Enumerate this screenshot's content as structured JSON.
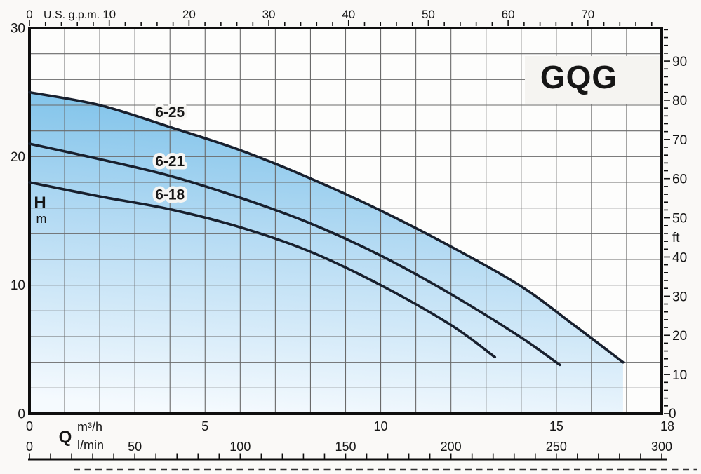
{
  "chart_data": {
    "type": "line",
    "title": "GQG",
    "x_axis_top_gpm": {
      "label": "U.S. g.p.m.",
      "ticks": [
        0,
        10,
        20,
        30,
        40,
        50,
        60,
        70
      ],
      "minor_step": 2,
      "minor_max": 78
    },
    "x_axis_bottom_m3h": {
      "symbol": "Q",
      "unit": "m³/h",
      "ticks": [
        0,
        5,
        10,
        15,
        18
      ],
      "max": 18
    },
    "x_axis_bottom_lmin": {
      "unit": "l/min",
      "ticks": [
        0,
        50,
        100,
        150,
        200,
        250,
        300
      ],
      "minor_step": 10,
      "max": 300
    },
    "y_axis_left_m": {
      "symbol": "H",
      "unit": "m",
      "ticks": [
        0,
        10,
        20,
        30
      ],
      "max": 30
    },
    "y_axis_right_ft": {
      "unit": "ft",
      "ticks": [
        0,
        10,
        20,
        30,
        40,
        50,
        60,
        70,
        80,
        90
      ],
      "minor_step": 2,
      "minor_max": 98
    },
    "series": [
      {
        "name": "6-25",
        "points": [
          [
            0,
            25
          ],
          [
            2,
            24
          ],
          [
            4,
            22.3
          ],
          [
            6,
            20.5
          ],
          [
            8,
            18.3
          ],
          [
            10,
            15.8
          ],
          [
            12,
            13.0
          ],
          [
            14,
            9.9
          ],
          [
            15.5,
            6.9
          ],
          [
            16.9,
            4.0
          ]
        ]
      },
      {
        "name": "6-21",
        "points": [
          [
            0,
            21
          ],
          [
            2,
            19.8
          ],
          [
            4,
            18.5
          ],
          [
            6,
            16.8
          ],
          [
            8,
            14.8
          ],
          [
            10,
            12.3
          ],
          [
            12,
            9.3
          ],
          [
            13.9,
            6.1
          ],
          [
            15.1,
            3.8
          ]
        ]
      },
      {
        "name": "6-18",
        "points": [
          [
            0,
            18
          ],
          [
            2,
            16.9
          ],
          [
            4,
            15.9
          ],
          [
            6,
            14.5
          ],
          [
            8,
            12.6
          ],
          [
            10,
            10.0
          ],
          [
            12,
            6.9
          ],
          [
            13.25,
            4.4
          ]
        ]
      }
    ],
    "colors": {
      "curve": "#18202e",
      "fill_top": "#77bfe8",
      "fill_mid": "#b3daf3",
      "fill_bottom": "#f5fafe",
      "grid": "#6a6a6a",
      "frame": "#0f0f0f",
      "text": "#161616",
      "plot_bg": "#fdfdfc",
      "margin_bg": "#faf9f7",
      "title_box_bg": "#f5f4f1"
    },
    "legend_position": "labels-on-curves",
    "grid": "on"
  }
}
